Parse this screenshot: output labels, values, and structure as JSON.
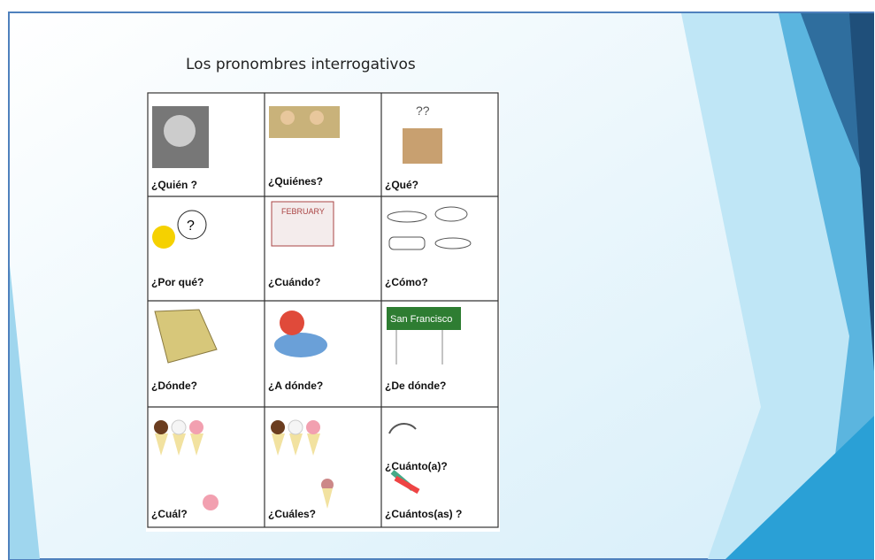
{
  "title": "Los pronombres interrogativos",
  "table": {
    "rows": [
      [
        "¿Quién ?",
        "¿Quiénes?",
        "¿Qué?"
      ],
      [
        "¿Por qué?",
        "¿Cuándo?",
        "¿Cómo?"
      ],
      [
        "¿Dónde?",
        "¿A dónde?",
        "¿De dónde?"
      ],
      [
        "¿Cuál?",
        "¿Cuáles?",
        [
          "¿Cuánto(a)?",
          "¿Cuántos(as) ?"
        ]
      ]
    ]
  }
}
